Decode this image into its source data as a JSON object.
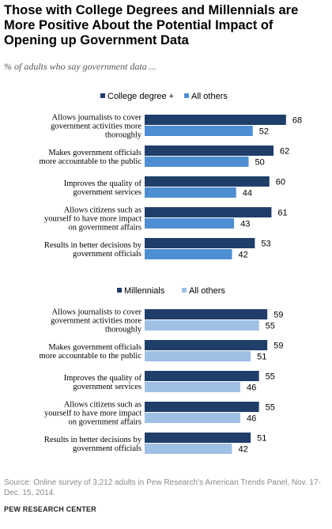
{
  "title": "Those with College Degrees and Millennials are More Positive About the Potential Impact of Opening up Government Data",
  "subtitle": "% of adults who say government data ...",
  "colors": {
    "dark": "#1f3f6a",
    "light_a": "#4d8ed3",
    "light_b": "#9fc0e5"
  },
  "chart_data": [
    {
      "type": "bar",
      "orientation": "horizontal",
      "categories": [
        [
          "Allows journalists to cover",
          "government activities more",
          "thoroughly"
        ],
        [
          "Makes government officials",
          "more accountable to the public"
        ],
        [
          "Improves the quality of",
          "government services"
        ],
        [
          "Allows citizens such as",
          "yourself to have more impact",
          "on government affairs"
        ],
        [
          "Results in better decisions by",
          "government officials"
        ]
      ],
      "series": [
        {
          "name": "College degree +",
          "values": [
            68,
            62,
            60,
            61,
            53
          ]
        },
        {
          "name": "All others",
          "values": [
            52,
            50,
            44,
            43,
            42
          ]
        }
      ],
      "legend_position": "top"
    },
    {
      "type": "bar",
      "orientation": "horizontal",
      "categories": [
        [
          "Allows journalists to cover",
          "government activities more",
          "thoroughly"
        ],
        [
          "Makes government officials",
          "more accountable to the public"
        ],
        [
          "Improves the quality of",
          "government services"
        ],
        [
          "Allows citizens such as",
          "yourself to have more impact",
          "on government affairs"
        ],
        [
          "Results in better decisions by",
          "government officials"
        ]
      ],
      "series": [
        {
          "name": "Millennials",
          "values": [
            59,
            59,
            55,
            55,
            51
          ]
        },
        {
          "name": "All others",
          "values": [
            55,
            51,
            46,
            46,
            42
          ]
        }
      ],
      "legend_position": "top"
    }
  ],
  "source": "Source: Online survey of 3,212 adults in Pew Research’s American Trends Panel, Nov. 17-Dec. 15, 2014.",
  "org": "PEW RESEARCH CENTER"
}
